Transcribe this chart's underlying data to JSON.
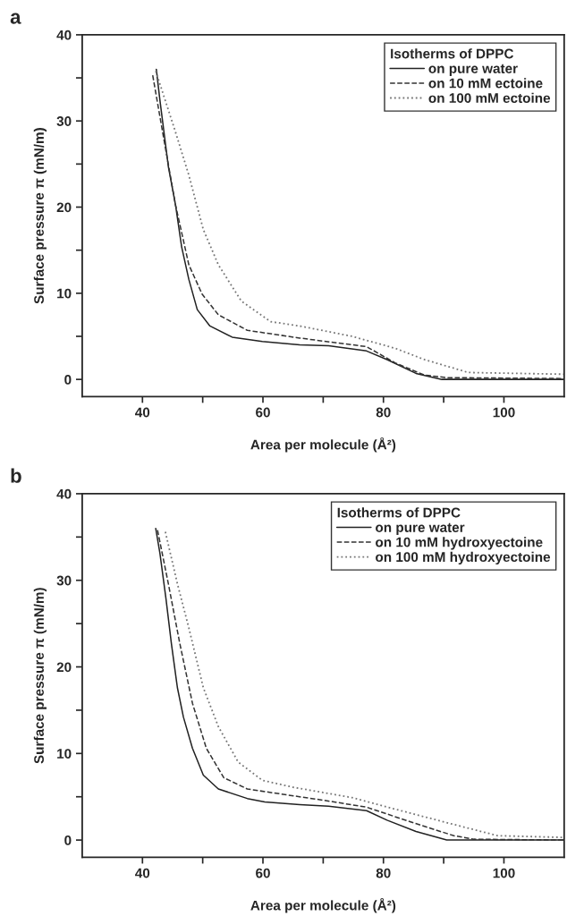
{
  "chart_data": [
    {
      "type": "line",
      "title": "a",
      "xlabel": "Area per molecule (Å²)",
      "ylabel": "Surface pressure π (mN/m)",
      "legend_title": "Isotherms of DPPC",
      "legend": "top right",
      "xlim": [
        30,
        110
      ],
      "ylim": [
        -2,
        40
      ],
      "xticks": [
        40,
        {
          "value": 50,
          "label": null
        },
        60,
        {
          "value": 70,
          "label": null
        },
        80,
        {
          "value": 90,
          "label": null
        },
        100
      ],
      "yticks": [
        0,
        {
          "value": 5,
          "label": null
        },
        10,
        {
          "value": 15,
          "label": null
        },
        20,
        {
          "value": 25,
          "label": null
        },
        30,
        {
          "value": 35,
          "label": null
        },
        40
      ],
      "series": [
        {
          "name": "on pure water",
          "color": "#222222",
          "line_style": "solid",
          "x": [
            42.3,
            42.9,
            44.3,
            45.5,
            46.5,
            47.7,
            49.1,
            51.2,
            54.9,
            59.9,
            66.1,
            70.9,
            77.2,
            80.6,
            85.4,
            89.7,
            110
          ],
          "values": [
            36,
            32.4,
            24.7,
            20.2,
            15.4,
            11.6,
            8.1,
            6.2,
            4.9,
            4.4,
            4.0,
            3.9,
            3.3,
            2.3,
            0.7,
            0,
            0
          ]
        },
        {
          "name": "on 10 mM ectoine",
          "color": "#333333",
          "line_style": "dashed",
          "x": [
            41.7,
            43.9,
            45.5,
            47.7,
            49.9,
            52.6,
            57.4,
            66.1,
            77.2,
            82.0,
            86.8,
            90.7,
            110
          ],
          "values": [
            35.3,
            26.5,
            20.2,
            13.3,
            9.9,
            7.5,
            5.7,
            4.8,
            3.8,
            1.9,
            0.5,
            0.2,
            0.1
          ]
        },
        {
          "name": "on 100 mM ectoine",
          "color": "#777777",
          "line_style": "dotted",
          "x": [
            42.2,
            45.4,
            47.7,
            50.1,
            52.6,
            56.4,
            61.3,
            66.1,
            74.8,
            82.0,
            86.8,
            94.1,
            110
          ],
          "values": [
            35.8,
            28.9,
            23.7,
            17.4,
            13.3,
            9.1,
            6.7,
            6.2,
            5.0,
            3.6,
            2.3,
            0.8,
            0.6
          ]
        }
      ]
    },
    {
      "type": "line",
      "title": "b",
      "xlabel": "Area per molecule (Å²)",
      "ylabel": "Surface pressure π (mN/m)",
      "legend_title": "Isotherms of DPPC",
      "legend": "top right",
      "xlim": [
        30,
        110
      ],
      "ylim": [
        -2,
        40
      ],
      "xticks": [
        40,
        {
          "value": 50,
          "label": null
        },
        60,
        {
          "value": 70,
          "label": null
        },
        80,
        {
          "value": 90,
          "label": null
        },
        100
      ],
      "yticks": [
        0,
        {
          "value": 5,
          "label": null
        },
        10,
        {
          "value": 15,
          "label": null
        },
        20,
        {
          "value": 25,
          "label": null
        },
        30,
        {
          "value": 35,
          "label": null
        },
        40
      ],
      "series": [
        {
          "name": "on pure water",
          "color": "#222222",
          "line_style": "solid",
          "x": [
            42.2,
            42.9,
            43.9,
            44.8,
            45.8,
            46.8,
            48.3,
            50.1,
            52.6,
            57.4,
            60.3,
            66.1,
            70.9,
            77.2,
            80.6,
            85.4,
            90.5,
            110
          ],
          "values": [
            36.0,
            33.1,
            27.9,
            22.7,
            17.6,
            14.2,
            10.6,
            7.5,
            5.9,
            4.8,
            4.4,
            4.1,
            3.9,
            3.4,
            2.3,
            1.0,
            0,
            0
          ]
        },
        {
          "name": "on 10 mM hydroxyectoine",
          "color": "#333333",
          "line_style": "dashed",
          "x": [
            42.5,
            44.3,
            46.2,
            48.3,
            50.6,
            53.5,
            57.4,
            66.1,
            70,
            77.2,
            84.5,
            91.7,
            95,
            110
          ],
          "values": [
            35.8,
            29.6,
            22.7,
            15.8,
            10.6,
            7.2,
            5.9,
            5.0,
            4.6,
            3.8,
            2.1,
            0.5,
            0.1,
            0
          ]
        },
        {
          "name": "on 100 mM hydroxyectoine",
          "color": "#777777",
          "line_style": "dotted",
          "x": [
            43.8,
            45.8,
            47.7,
            50.1,
            52.6,
            55.9,
            59.9,
            65,
            74.8,
            84.5,
            91.7,
            99,
            110
          ],
          "values": [
            35.6,
            29.6,
            24.5,
            17.6,
            13.1,
            9.0,
            6.9,
            6.1,
            4.9,
            3.1,
            1.8,
            0.5,
            0.3
          ]
        }
      ]
    }
  ]
}
